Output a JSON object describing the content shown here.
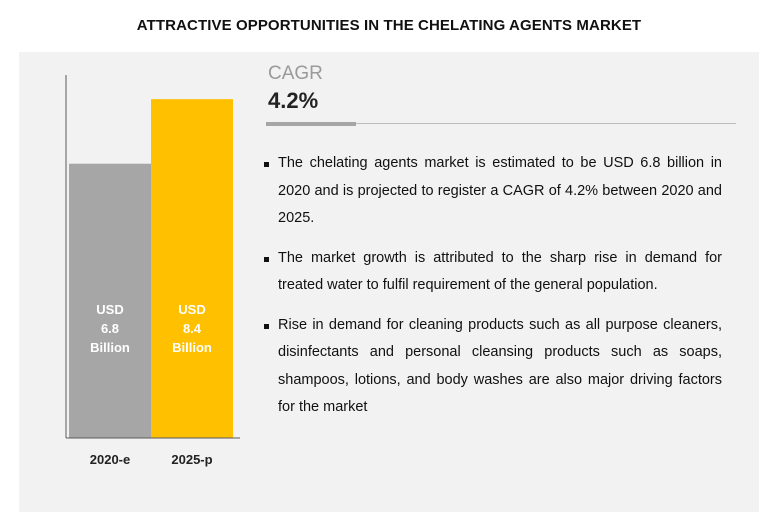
{
  "title": "ATTRACTIVE OPPORTUNITIES IN THE CHELATING AGENTS MARKET",
  "cagr": {
    "label": "CAGR",
    "value": "4.2%"
  },
  "bullets": [
    "The chelating agents market is estimated to be USD 6.8 billion in 2020 and is projected to register a CAGR of 4.2% between 2020 and 2025.",
    "The market growth is attributed to the sharp rise in demand for treated water to fulfil requirement of the general population.",
    "Rise in demand for cleaning products such as all purpose cleaners, disinfectants and personal cleansing products such as soaps, shampoos, lotions, and body washes are also major driving factors for the market"
  ],
  "colors": {
    "bar_2020": "#a6a6a6",
    "bar_2025": "#ffc000",
    "panel": "#f2f2f2"
  },
  "chart_data": {
    "type": "bar",
    "categories": [
      "2020-e",
      "2025-p"
    ],
    "values": [
      6.8,
      8.4
    ],
    "data_labels": [
      [
        "USD",
        "6.8",
        "Billion"
      ],
      [
        "USD",
        "8.4",
        "Billion"
      ]
    ],
    "ylim": [
      0,
      8.9
    ],
    "grid": false
  }
}
